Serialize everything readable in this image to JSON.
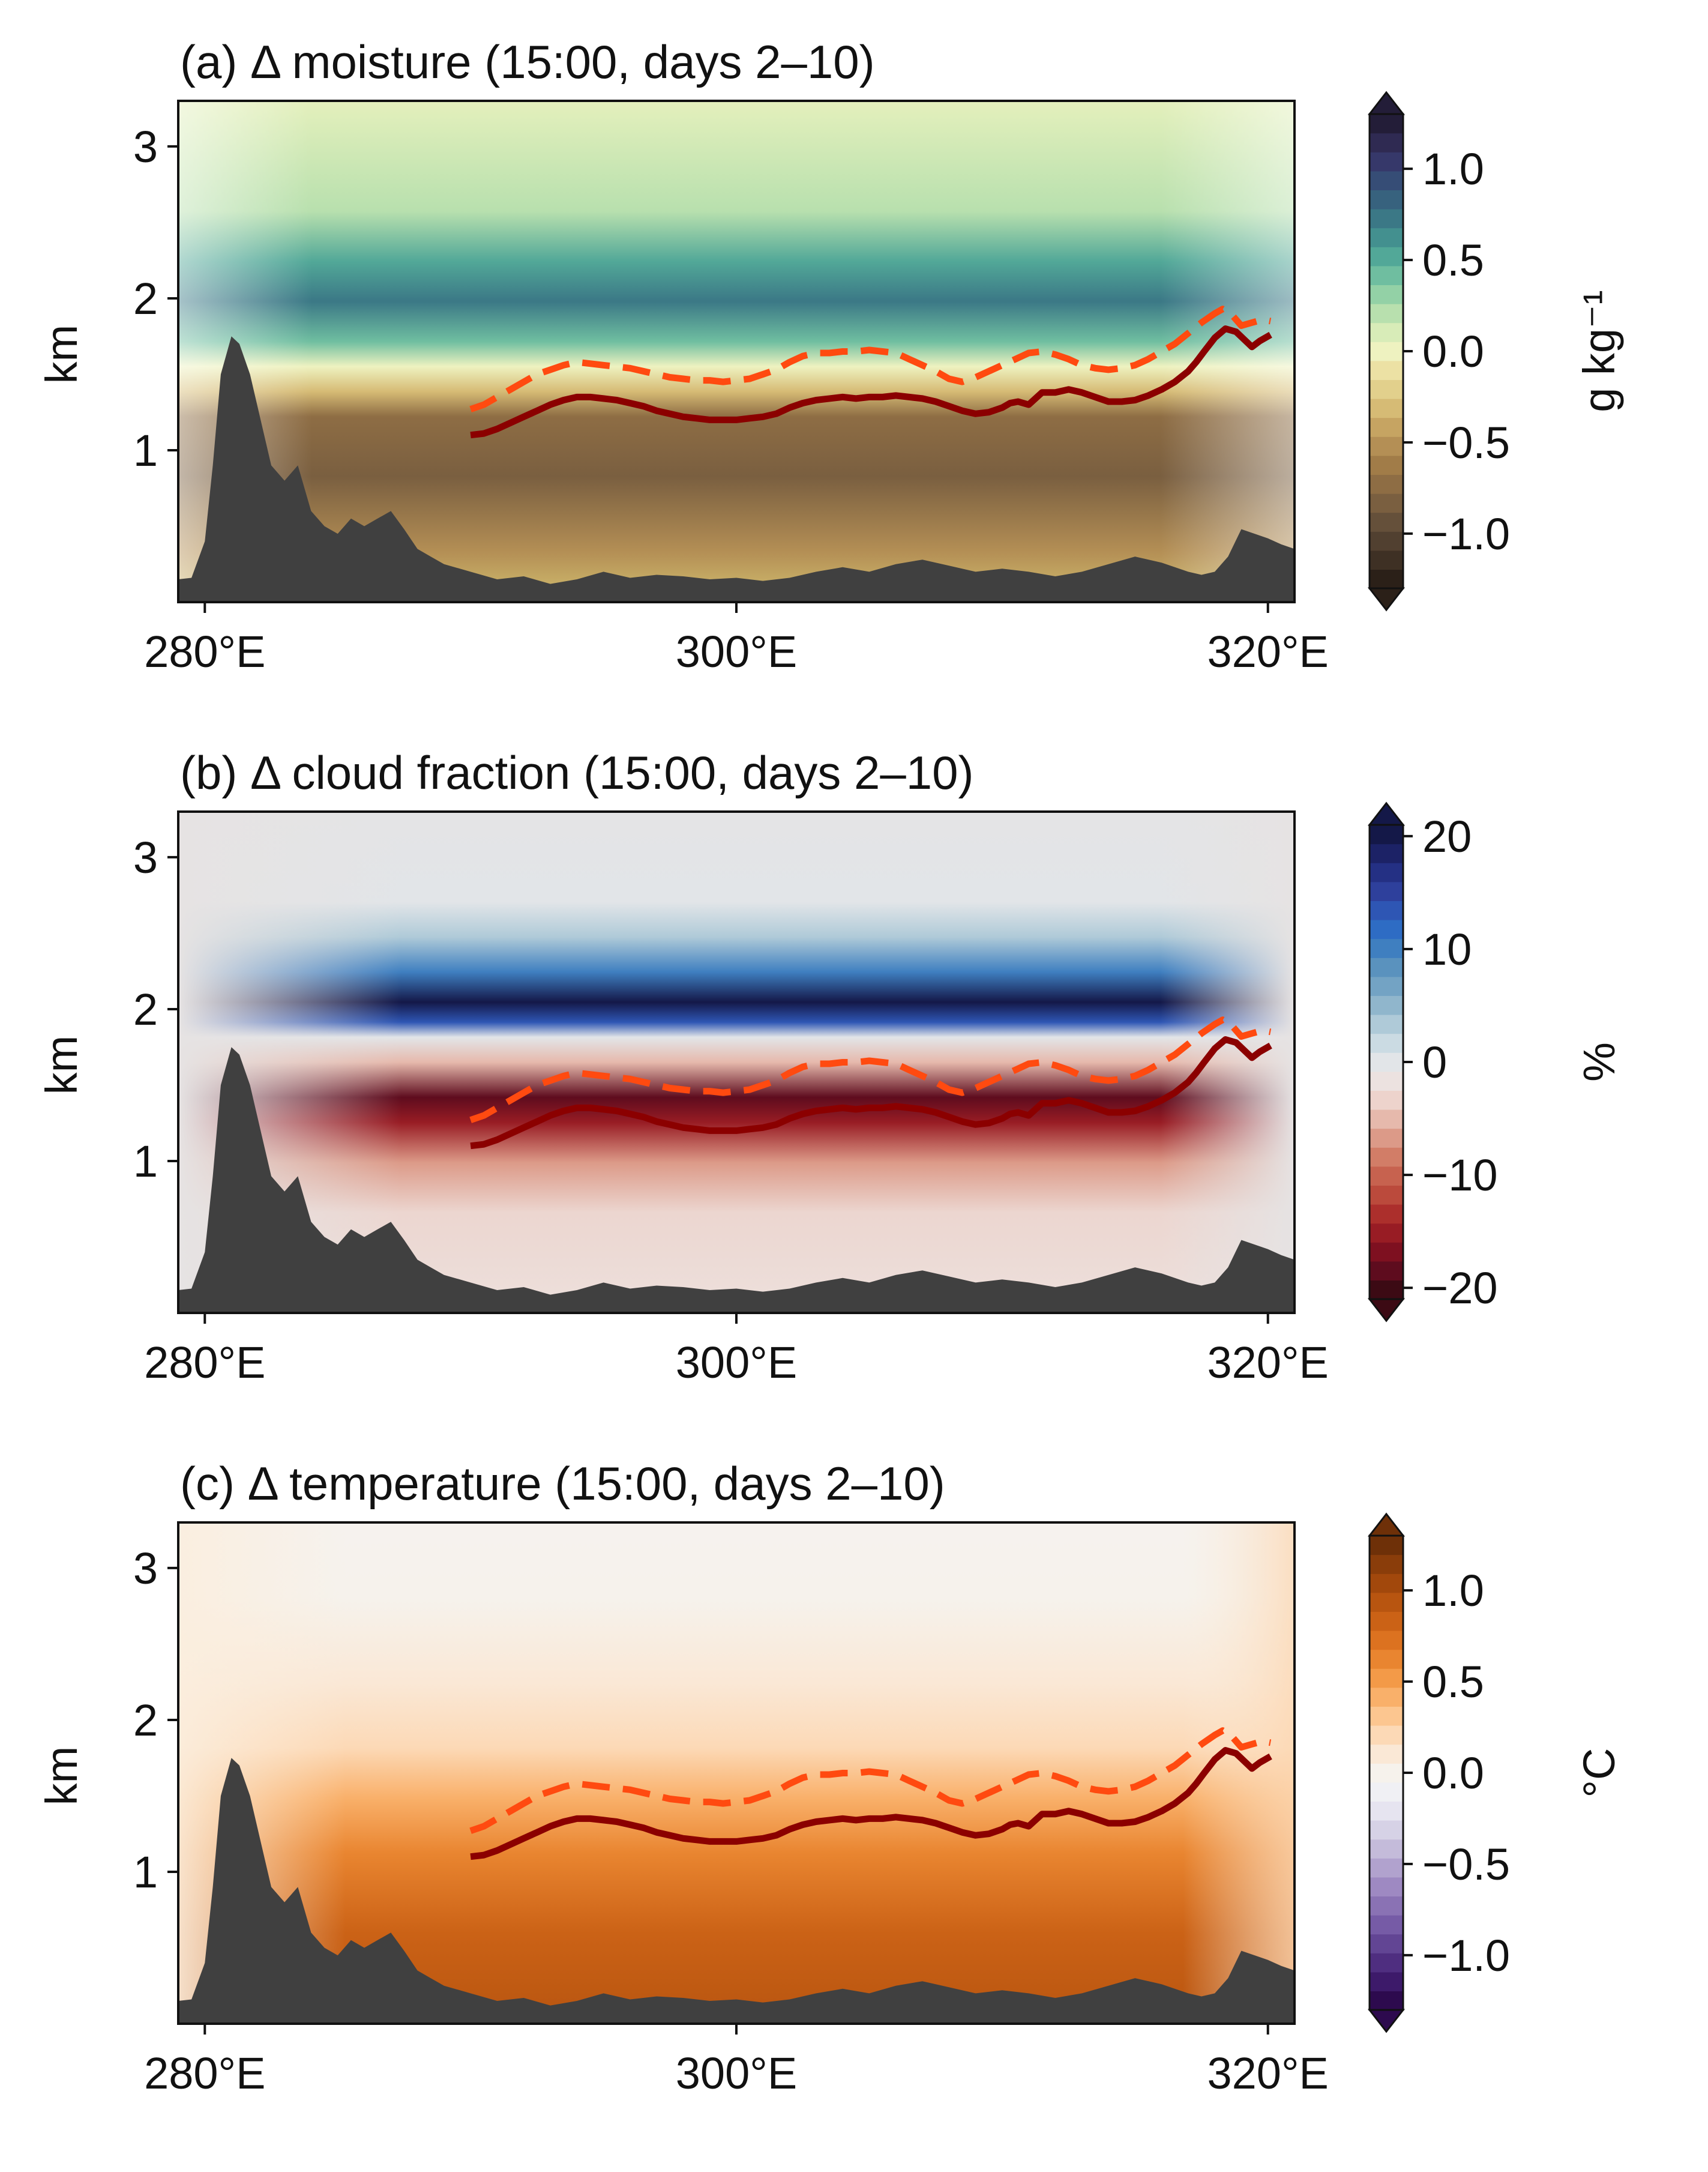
{
  "chart_data": [
    {
      "type": "heatmap",
      "title": "(a) Δ moisture (15:00, days 2–10)",
      "ylabel": "km",
      "xlabel": "",
      "x_ticks": [
        "280°E",
        "300°E",
        "320°E"
      ],
      "y_ticks": [
        "1",
        "2",
        "3"
      ],
      "xlim": [
        279,
        321
      ],
      "ylim": [
        0,
        3.3
      ],
      "colorbar": {
        "label": "g kg⁻¹",
        "range": [
          -1.3,
          1.3
        ],
        "ticks": [
          "−1.0",
          "−0.5",
          "0.0",
          "0.5",
          "1.0"
        ],
        "tick_values": [
          -1.0,
          -0.5,
          0.0,
          0.5,
          1.0
        ],
        "colors": [
          "#2b2018",
          "#3e3024",
          "#514030",
          "#65503a",
          "#7a5f40",
          "#8e6d44",
          "#a17c48",
          "#b48f55",
          "#c6a462",
          "#d6bb75",
          "#e2d08c",
          "#ece1a4",
          "#eef2c0",
          "#d8ecb8",
          "#b8e0ae",
          "#93d1a6",
          "#6fbea0",
          "#52a898",
          "#43908f",
          "#3b7886",
          "#37627e",
          "#364d76",
          "#36386a",
          "#2f2a52",
          "#231d38"
        ]
      },
      "field_summary": {
        "lower_layer_0_to_1.3km": -1.0,
        "upper_band_1.6_to_2.4km": 0.9,
        "above_2.6km": 0.15
      }
    },
    {
      "type": "heatmap",
      "title": "(b) Δ cloud fraction (15:00, days 2–10)",
      "ylabel": "km",
      "xlabel": "",
      "x_ticks": [
        "280°E",
        "300°E",
        "320°E"
      ],
      "y_ticks": [
        "1",
        "2",
        "3"
      ],
      "xlim": [
        279,
        321
      ],
      "ylim": [
        0,
        3.3
      ],
      "colorbar": {
        "label": "%",
        "range": [
          -21,
          21
        ],
        "ticks": [
          "−20",
          "−10",
          "0",
          "10",
          "20"
        ],
        "tick_values": [
          -20,
          -10,
          0,
          10,
          20
        ],
        "colors": [
          "#3c0a14",
          "#5e0c1e",
          "#7e1020",
          "#981c24",
          "#ac2f2c",
          "#bb4a3c",
          "#c7624f",
          "#d27d67",
          "#dc9a88",
          "#e6b9ac",
          "#edd3cc",
          "#ece2e0",
          "#e2e5e8",
          "#cbdbe3",
          "#afcad8",
          "#90b6cc",
          "#73a3c4",
          "#5a92be",
          "#3f7fc0",
          "#2e6cc4",
          "#2e56b4",
          "#2e409c",
          "#243084",
          "#1c2266",
          "#141848"
        ]
      },
      "field_summary": {
        "negative_band_near_cloud_top": -20,
        "positive_band_near_2km": 20,
        "background": 0
      }
    },
    {
      "type": "heatmap",
      "title": "(c) Δ temperature (15:00, days 2–10)",
      "ylabel": "km",
      "xlabel": "",
      "x_ticks": [
        "280°E",
        "300°E",
        "320°E"
      ],
      "y_ticks": [
        "1",
        "2",
        "3"
      ],
      "xlim": [
        279,
        321
      ],
      "ylim": [
        0,
        3.3
      ],
      "colorbar": {
        "label": "°C",
        "range": [
          -1.3,
          1.3
        ],
        "ticks": [
          "−1.0",
          "−0.5",
          "0.0",
          "0.5",
          "1.0"
        ],
        "tick_values": [
          -1.0,
          -0.5,
          0.0,
          0.5,
          1.0
        ],
        "colors": [
          "#2d0a4e",
          "#3d1a6a",
          "#4f2e80",
          "#624594",
          "#765ba6",
          "#8a72b4",
          "#9e89c2",
          "#b1a2ce",
          "#c4bbda",
          "#d6d2e6",
          "#e6e4f0",
          "#f0f0f4",
          "#f6f2ec",
          "#fae8d6",
          "#fcd9b6",
          "#fcc690",
          "#f9b06a",
          "#f39a48",
          "#e98530",
          "#dc7220",
          "#cb6216",
          "#b85510",
          "#a2480c",
          "#8a3d0a",
          "#6e3008"
        ]
      },
      "field_summary": {
        "lower_layer_0_to_1.3km": 1.0,
        "above_2.2km": 0.05
      }
    }
  ],
  "lines": {
    "solid_dark_red": {
      "color": "#8b0000",
      "lon": [
        290.0,
        290.5,
        291,
        291.5,
        292,
        292.5,
        293,
        293.5,
        294,
        294.5,
        295,
        295.5,
        296,
        296.5,
        297,
        297.5,
        298,
        298.5,
        299,
        299.5,
        300,
        300.5,
        301,
        301.5,
        302,
        302.5,
        303,
        303.5,
        304,
        304.5,
        305,
        305.5,
        306,
        306.5,
        307,
        307.5,
        308,
        308.5,
        309,
        309.5,
        310,
        310.3,
        310.6,
        311,
        311.5,
        312,
        312.5,
        313,
        313.5,
        314,
        314.5,
        315,
        315.5,
        316,
        316.5,
        317,
        317.3,
        317.6,
        318,
        318.4,
        318.8,
        319.1,
        319.4,
        319.7,
        320.1
      ],
      "height_km": [
        1.1,
        1.11,
        1.14,
        1.18,
        1.22,
        1.26,
        1.3,
        1.33,
        1.35,
        1.35,
        1.34,
        1.33,
        1.31,
        1.29,
        1.26,
        1.24,
        1.22,
        1.21,
        1.2,
        1.2,
        1.2,
        1.21,
        1.22,
        1.24,
        1.28,
        1.31,
        1.33,
        1.34,
        1.35,
        1.34,
        1.35,
        1.35,
        1.36,
        1.35,
        1.34,
        1.32,
        1.29,
        1.26,
        1.24,
        1.25,
        1.28,
        1.31,
        1.32,
        1.3,
        1.38,
        1.38,
        1.4,
        1.38,
        1.35,
        1.32,
        1.32,
        1.33,
        1.36,
        1.4,
        1.45,
        1.52,
        1.58,
        1.65,
        1.74,
        1.8,
        1.78,
        1.73,
        1.68,
        1.72,
        1.76
      ]
    },
    "dashed_orange": {
      "color": "#ff4a10",
      "lon": [
        290.0,
        290.5,
        291,
        291.5,
        292,
        292.5,
        293,
        293.5,
        294,
        294.5,
        295,
        295.5,
        296,
        296.5,
        297,
        297.5,
        298,
        298.5,
        299,
        299.5,
        300,
        300.5,
        301,
        301.5,
        302,
        302.5,
        303,
        303.5,
        304,
        304.5,
        305,
        305.5,
        306,
        306.5,
        307,
        307.5,
        308,
        308.5,
        309,
        309.5,
        310,
        310.5,
        311,
        311.5,
        312,
        312.5,
        313,
        313.5,
        314,
        314.5,
        315,
        315.5,
        316,
        316.5,
        317,
        317.5,
        318,
        318.3,
        318.6,
        319,
        319.4,
        319.8,
        320.1
      ],
      "height_km": [
        1.27,
        1.3,
        1.35,
        1.4,
        1.45,
        1.5,
        1.53,
        1.56,
        1.58,
        1.57,
        1.56,
        1.55,
        1.54,
        1.52,
        1.5,
        1.48,
        1.47,
        1.46,
        1.46,
        1.45,
        1.46,
        1.47,
        1.5,
        1.53,
        1.58,
        1.62,
        1.64,
        1.64,
        1.65,
        1.65,
        1.66,
        1.65,
        1.64,
        1.6,
        1.56,
        1.52,
        1.47,
        1.45,
        1.48,
        1.52,
        1.56,
        1.6,
        1.64,
        1.65,
        1.63,
        1.6,
        1.56,
        1.54,
        1.53,
        1.54,
        1.56,
        1.6,
        1.65,
        1.7,
        1.77,
        1.84,
        1.9,
        1.93,
        1.9,
        1.82,
        1.84,
        1.86,
        1.85
      ]
    }
  },
  "terrain": {
    "color": "#404040",
    "lon": [
      279,
      279.5,
      280,
      280.3,
      280.6,
      281,
      281.3,
      281.7,
      282.1,
      282.5,
      283,
      283.5,
      284,
      284.5,
      285,
      285.5,
      286,
      286.5,
      287,
      287.5,
      288,
      288.5,
      289,
      290,
      291,
      292,
      293,
      294,
      295,
      296,
      297,
      298,
      299,
      300,
      301,
      302,
      303,
      304,
      305,
      306,
      307,
      308,
      309,
      310,
      311,
      312,
      313,
      314,
      315,
      316,
      317,
      317.5,
      318,
      318.5,
      319,
      319.5,
      320,
      320.5,
      321
    ],
    "height_km": [
      0.15,
      0.16,
      0.4,
      0.9,
      1.5,
      1.75,
      1.7,
      1.5,
      1.2,
      0.9,
      0.8,
      0.9,
      0.6,
      0.5,
      0.45,
      0.55,
      0.5,
      0.55,
      0.6,
      0.48,
      0.35,
      0.3,
      0.25,
      0.2,
      0.15,
      0.17,
      0.12,
      0.15,
      0.2,
      0.16,
      0.18,
      0.17,
      0.15,
      0.16,
      0.14,
      0.16,
      0.2,
      0.23,
      0.2,
      0.25,
      0.28,
      0.24,
      0.2,
      0.22,
      0.2,
      0.17,
      0.2,
      0.25,
      0.3,
      0.26,
      0.2,
      0.18,
      0.2,
      0.3,
      0.48,
      0.45,
      0.42,
      0.38,
      0.35
    ]
  }
}
